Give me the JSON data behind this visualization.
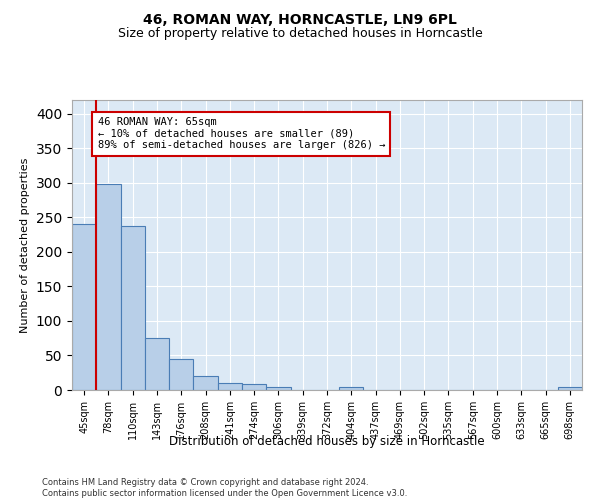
{
  "title": "46, ROMAN WAY, HORNCASTLE, LN9 6PL",
  "subtitle": "Size of property relative to detached houses in Horncastle",
  "xlabel": "Distribution of detached houses by size in Horncastle",
  "ylabel": "Number of detached properties",
  "bar_labels": [
    "45sqm",
    "78sqm",
    "110sqm",
    "143sqm",
    "176sqm",
    "208sqm",
    "241sqm",
    "274sqm",
    "306sqm",
    "339sqm",
    "372sqm",
    "404sqm",
    "437sqm",
    "469sqm",
    "502sqm",
    "535sqm",
    "567sqm",
    "600sqm",
    "633sqm",
    "665sqm",
    "698sqm"
  ],
  "bar_values": [
    240,
    298,
    238,
    75,
    45,
    20,
    10,
    8,
    5,
    0,
    0,
    4,
    0,
    0,
    0,
    0,
    0,
    0,
    0,
    0,
    4
  ],
  "bar_color": "#b8cfe8",
  "bar_edge_color": "#4a7db5",
  "vline_color": "#cc0000",
  "annotation_text": "46 ROMAN WAY: 65sqm\n← 10% of detached houses are smaller (89)\n89% of semi-detached houses are larger (826) →",
  "annotation_box_color": "#ffffff",
  "annotation_box_edge": "#cc0000",
  "ylim": [
    0,
    420
  ],
  "yticks": [
    0,
    50,
    100,
    150,
    200,
    250,
    300,
    350,
    400
  ],
  "background_color": "#dce9f5",
  "grid_color": "#ffffff",
  "footer_line1": "Contains HM Land Registry data © Crown copyright and database right 2024.",
  "footer_line2": "Contains public sector information licensed under the Open Government Licence v3.0."
}
